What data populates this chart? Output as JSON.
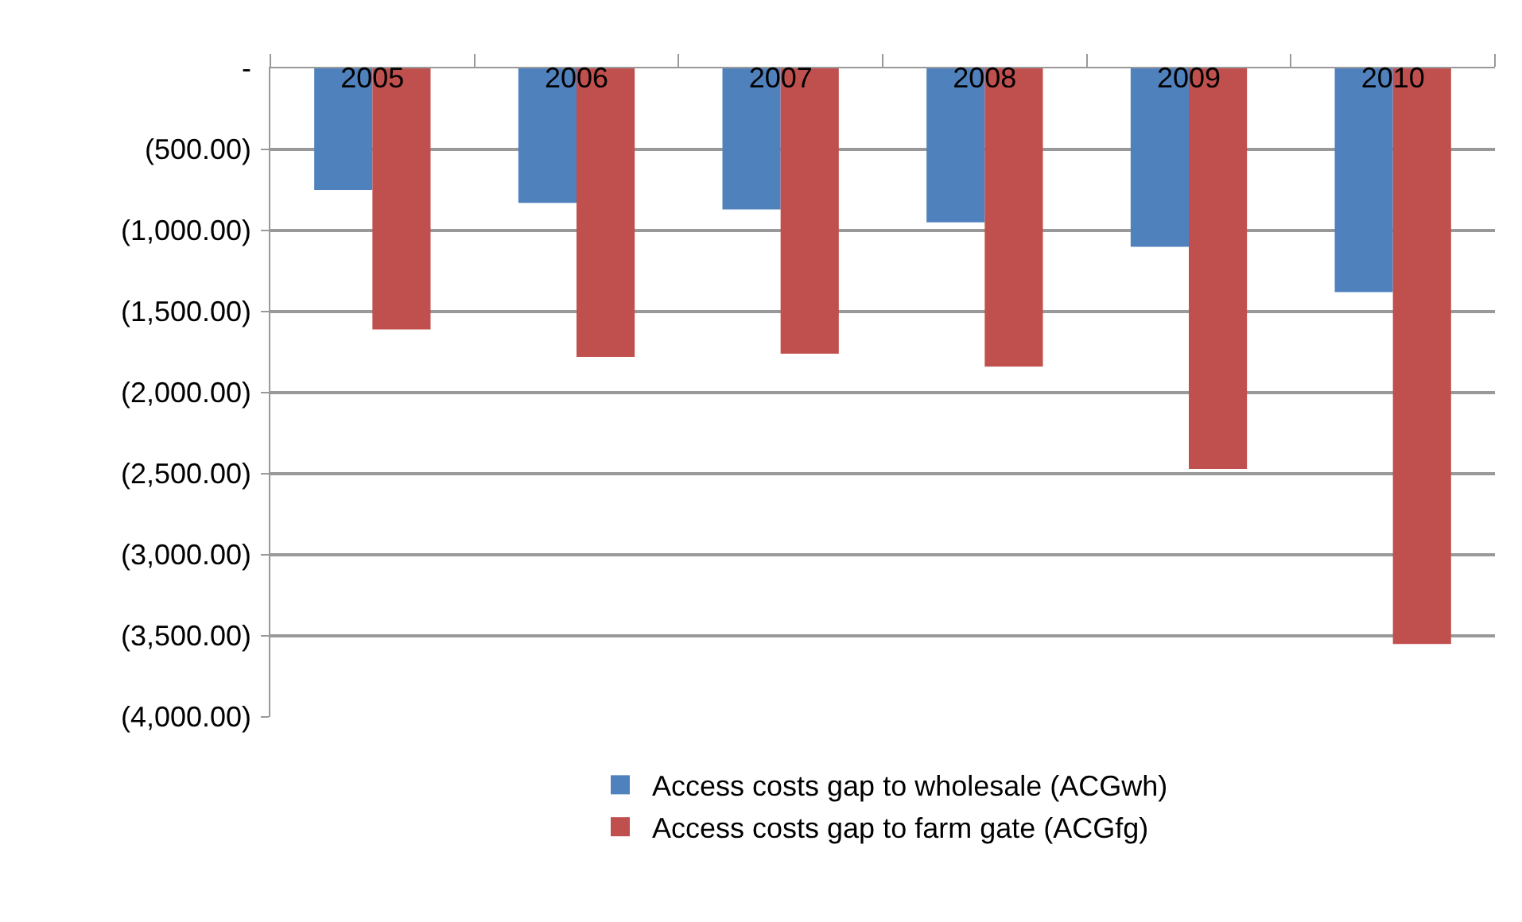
{
  "chart_data": {
    "type": "bar",
    "categories": [
      "2005",
      "2006",
      "2007",
      "2008",
      "2009",
      "2010"
    ],
    "series": [
      {
        "name": "Access costs gap to wholesale (ACGwh)",
        "color": "#4f81bd",
        "values": [
          -750,
          -830,
          -870,
          -950,
          -1100,
          -1380
        ]
      },
      {
        "name": "Access costs gap to farm gate (ACGfg)",
        "color": "#c0504d",
        "values": [
          -1610,
          -1780,
          -1760,
          -1840,
          -2470,
          -3550
        ]
      }
    ],
    "ylim": [
      -4000,
      0
    ],
    "yticks": [
      {
        "value": 0,
        "label": "-"
      },
      {
        "value": -500,
        "label": "(500.00)"
      },
      {
        "value": -1000,
        "label": "(1,000.00)"
      },
      {
        "value": -1500,
        "label": "(1,500.00)"
      },
      {
        "value": -2000,
        "label": "(2,000.00)"
      },
      {
        "value": -2500,
        "label": "(2,500.00)"
      },
      {
        "value": -3000,
        "label": "(3,000.00)"
      },
      {
        "value": -3500,
        "label": "(3,500.00)"
      },
      {
        "value": -4000,
        "label": "(4,000.00)"
      }
    ],
    "grid": "y",
    "legend": "bottom"
  }
}
